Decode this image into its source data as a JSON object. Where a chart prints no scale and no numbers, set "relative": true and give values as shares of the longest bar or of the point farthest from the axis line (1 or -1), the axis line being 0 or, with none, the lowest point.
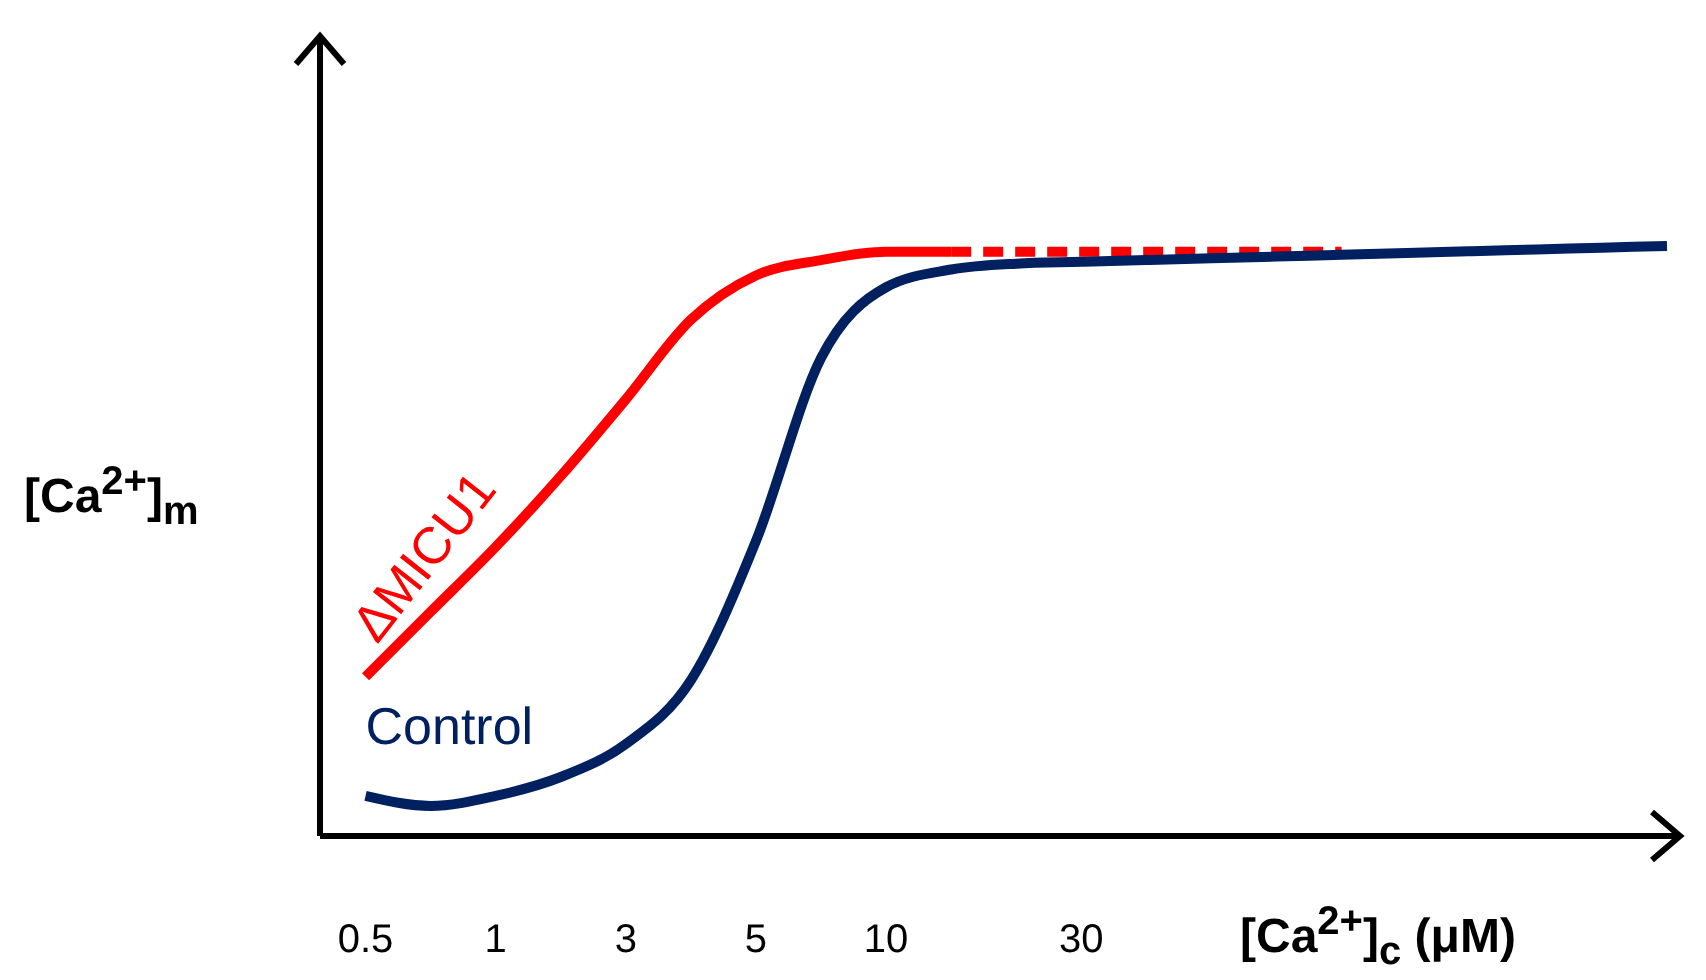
{
  "chart_data": {
    "type": "line",
    "relative": true,
    "xlabel": "[Ca$^{2+}$]$_{c}$ (μM)",
    "ylabel": "[Ca$^{2+}$]$_{m}$",
    "categories": [
      "0.5",
      null,
      "1",
      null,
      "3",
      null,
      "5",
      null,
      "10",
      null,
      null,
      "30",
      null,
      null,
      null,
      null,
      null,
      null,
      null,
      null,
      null
    ],
    "marker": "none",
    "series": [
      {
        "name": "ΔMICU1",
        "color": "#ff0000",
        "line_style": "solid",
        "values": [
          0.27,
          0.38,
          0.49,
          0.61,
          0.74,
          0.875,
          0.95,
          0.976,
          0.99,
          0.99,
          null,
          null,
          null,
          null,
          null,
          null,
          null,
          null,
          null,
          null,
          null
        ]
      },
      {
        "color": "#ff0000",
        "line_style": "dashed",
        "values": [
          null,
          null,
          null,
          null,
          null,
          null,
          null,
          null,
          null,
          0.99,
          0.99,
          0.99,
          0.99,
          0.99,
          0.99,
          0.99,
          null,
          null,
          null,
          null,
          null
        ]
      },
      {
        "name": "Control",
        "color": "#002060",
        "line_style": "solid",
        "values": [
          0.068,
          0.051,
          0.068,
          0.1,
          0.156,
          0.264,
          0.5,
          0.81,
          0.93,
          0.96,
          0.97,
          0.973,
          0.976,
          0.979,
          0.982,
          0.985,
          0.988,
          0.991,
          0.994,
          0.997,
          1
        ]
      }
    ]
  }
}
